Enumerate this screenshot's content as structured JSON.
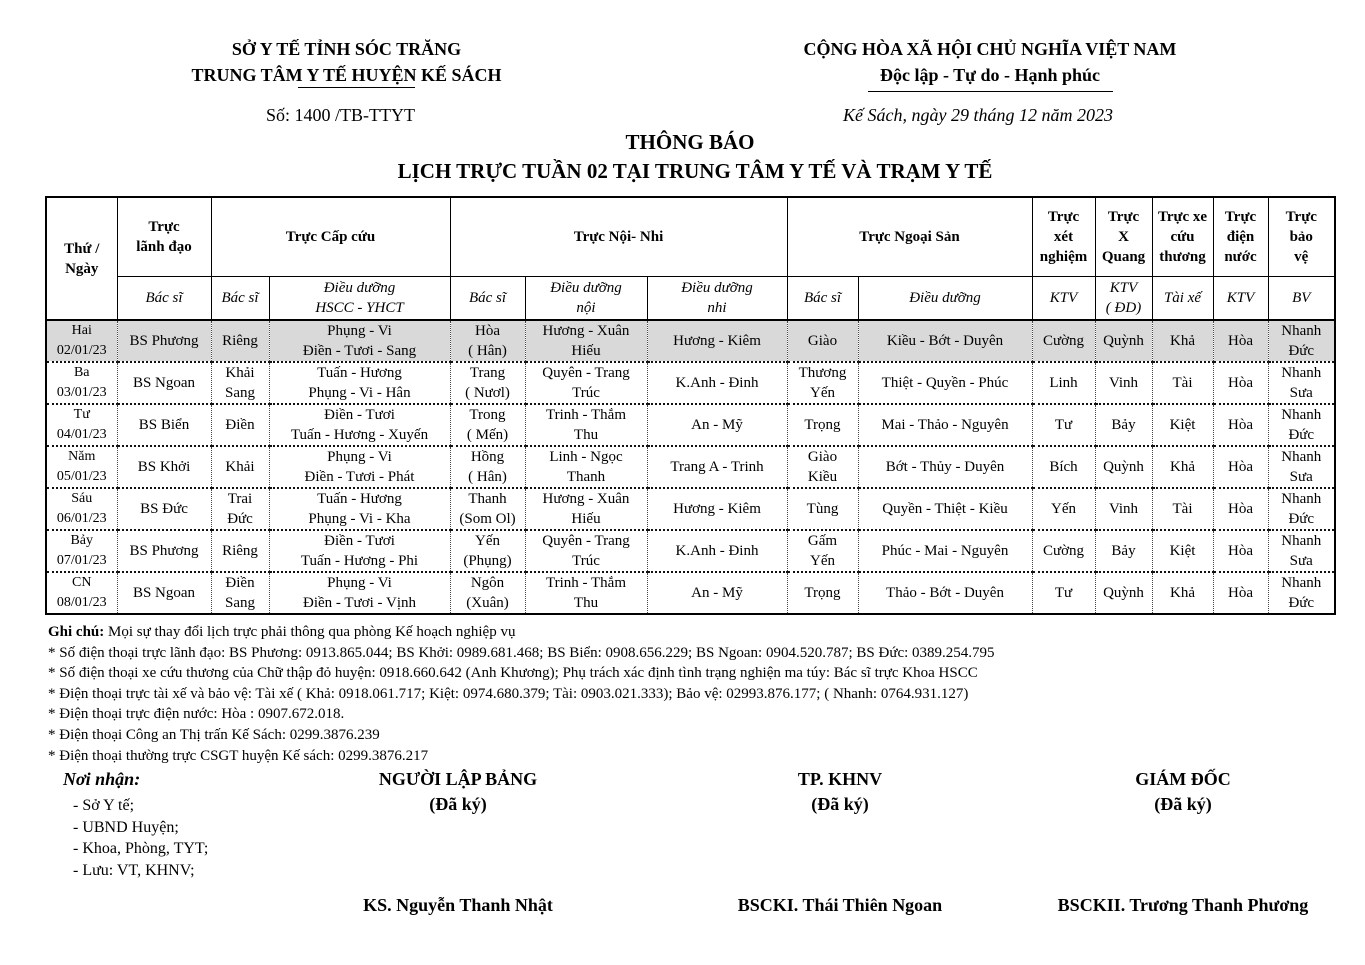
{
  "header": {
    "left_line1": "SỞ Y TẾ TỈNH SÓC TRĂNG",
    "left_line2": "TRUNG TÂM Y TẾ HUYỆN KẾ SÁCH",
    "right_line1": "CỘNG HÒA XÃ HỘI CHỦ NGHĨA VIỆT NAM",
    "right_line2": "Độc lập - Tự do - Hạnh phúc",
    "number": "Số: 1400 /TB-TTYT",
    "date": "Kế Sách, ngày 29 tháng 12 năm 2023",
    "title": "THÔNG BÁO",
    "subtitle": "LỊCH TRỰC TUẦN 02 TẠI TRUNG TÂM Y TẾ VÀ TRẠM Y TẾ"
  },
  "table": {
    "group_headers": [
      {
        "label": "Thứ /\nNgày",
        "rowspan": 1,
        "colspan": 1
      },
      {
        "label": "Trực\nlãnh đạo",
        "colspan": 1
      },
      {
        "label": "Trực Cấp cứu",
        "colspan": 2
      },
      {
        "label": "Trực Nội- Nhi",
        "colspan": 3
      },
      {
        "label": "Trực Ngoại Sản",
        "colspan": 2
      },
      {
        "label": "Trực\nxét\nnghiệm",
        "colspan": 1
      },
      {
        "label": "Trực\nX\nQuang",
        "colspan": 1
      },
      {
        "label": "Trực xe\ncứu\nthương",
        "colspan": 1
      },
      {
        "label": "Trực\nđiện\nnước",
        "colspan": 1
      },
      {
        "label": "Trực\nbảo\nvệ",
        "colspan": 1
      }
    ],
    "sub_headers": [
      "",
      "Bác sĩ",
      "Bác sĩ",
      "Điều dưỡng\nHSCC - YHCT",
      "Bác sĩ",
      "Điều dưỡng\nnội",
      "Điều dưỡng\nnhi",
      "Bác sĩ",
      "Điều dưỡng",
      "KTV",
      "KTV\n( ĐD)",
      "Tài xế",
      "KTV",
      "BV"
    ],
    "rows": [
      [
        "Hai\n02/01/23",
        "BS Phương",
        "Riêng",
        "Phụng - Vi\nĐiền - Tươi - Sang",
        "Hòa\n( Hân)",
        "Hương - Xuân\nHiếu",
        "Hương - Kiêm",
        "Giào",
        "Kiều - Bớt - Duyên",
        "Cường",
        "Quỳnh",
        "Khả",
        "Hòa",
        "Nhanh\nĐức"
      ],
      [
        "Ba\n03/01/23",
        "BS Ngoan",
        "Khải\nSang",
        "Tuấn - Hương\nPhụng - Vi - Hân",
        "Trang\n( Nươl)",
        "Quyên - Trang\nTrúc",
        "K.Anh - Đinh",
        "Thương\nYến",
        "Thiệt - Quyền - Phúc",
        "Linh",
        "Vinh",
        "Tài",
        "Hòa",
        "Nhanh\nSưa"
      ],
      [
        "Tư\n04/01/23",
        "BS Biển",
        "Điền",
        "Điền - Tươi\nTuấn - Hương - Xuyến",
        "Trong\n( Mến)",
        "Trinh - Thắm\nThu",
        "An - Mỹ",
        "Trọng",
        "Mai - Thảo - Nguyên",
        "Tư",
        "Bảy",
        "Kiệt",
        "Hòa",
        "Nhanh\nĐức"
      ],
      [
        "Năm\n05/01/23",
        "BS Khởi",
        "Khải",
        "Phụng - Vi\nĐiền - Tươi - Phát",
        "Hồng\n( Hân)",
        "Linh - Ngọc\nThanh",
        "Trang A - Trinh",
        "Giào\nKiều",
        "Bớt - Thủy - Duyên",
        "Bích",
        "Quỳnh",
        "Khả",
        "Hòa",
        "Nhanh\nSưa"
      ],
      [
        "Sáu\n06/01/23",
        "BS Đức",
        "Trai\nĐức",
        "Tuấn - Hương\nPhụng - Vi - Kha",
        "Thanh\n(Som Ol)",
        "Hương - Xuân\nHiếu",
        "Hương - Kiêm",
        "Tùng",
        "Quyền - Thiệt - Kiều",
        "Yến",
        "Vinh",
        "Tài",
        "Hòa",
        "Nhanh\nĐức"
      ],
      [
        "Bảy\n07/01/23",
        "BS Phương",
        "Riêng",
        "Điền - Tươi\nTuấn - Hương - Phi",
        "Yến\n(Phụng)",
        "Quyên - Trang\nTrúc",
        "K.Anh - Đinh",
        "Gấm\nYến",
        "Phúc - Mai - Nguyên",
        "Cường",
        "Bảy",
        "Kiệt",
        "Hòa",
        "Nhanh\nSưa"
      ],
      [
        "CN\n08/01/23",
        "BS Ngoan",
        "Điền\nSang",
        "Phụng - Vi\nĐiền - Tươi - Vịnh",
        "Ngôn\n(Xuân)",
        "Trinh - Thắm\nThu",
        "An - Mỹ",
        "Trọng",
        "Thảo - Bớt - Duyên",
        "Tư",
        "Quỳnh",
        "Khả",
        "Hòa",
        "Nhanh\nĐức"
      ]
    ],
    "shade_color": "#d9d9d9"
  },
  "notes": {
    "label": "Ghi chú:",
    "text": " Mọi sự thay đổi lịch trực phải thông qua phòng Kế hoạch nghiệp vụ",
    "lines": [
      "* Số điện thoại trực lãnh đạo: BS Phương: 0913.865.044; BS Khởi:  0989.681.468; BS Biển: 0908.656.229; BS Ngoan: 0904.520.787; BS Đức: 0389.254.795",
      "* Số điện thoại xe cứu thương của Chữ thập đỏ huyện: 0918.660.642 (Anh Khương); Phụ trách xác định tình trạng nghiện ma túy: Bác sĩ trực Khoa HSCC",
      "* Điện thoại trực tài xế và bảo vệ: Tài  xế ( Khả: 0918.061.717;   Kiệt: 0974.680.379; Tài: 0903.021.333);  Bảo vệ: 02993.876.177; ( Nhanh: 0764.931.127)",
      "* Điện thoại trực điện nước: Hòa : 0907.672.018.",
      "* Điện thoại Công an Thị trấn Kế Sách: 0299.3876.239",
      "* Điện thoại thường trực CSGT huyện Kế sách: 0299.3876.217"
    ]
  },
  "recipients": {
    "label": "Nơi nhận:",
    "items": [
      "- Sở Y tế;",
      "- UBND Huyện;",
      "- Khoa, Phòng, TYT;",
      "- Lưu: VT, KHNV;"
    ]
  },
  "signatures": [
    {
      "role": "NGƯỜI LẬP BẢNG",
      "status": "(Đã ký)",
      "name": "KS. Nguyễn Thanh Nhật"
    },
    {
      "role": "TP. KHNV",
      "status": "(Đã ký)",
      "name": "BSCKI. Thái Thiên Ngoan"
    },
    {
      "role": "GIÁM ĐỐC",
      "status": "(Đã ký)",
      "name": "BSCKII. Trương Thanh Phương"
    }
  ]
}
